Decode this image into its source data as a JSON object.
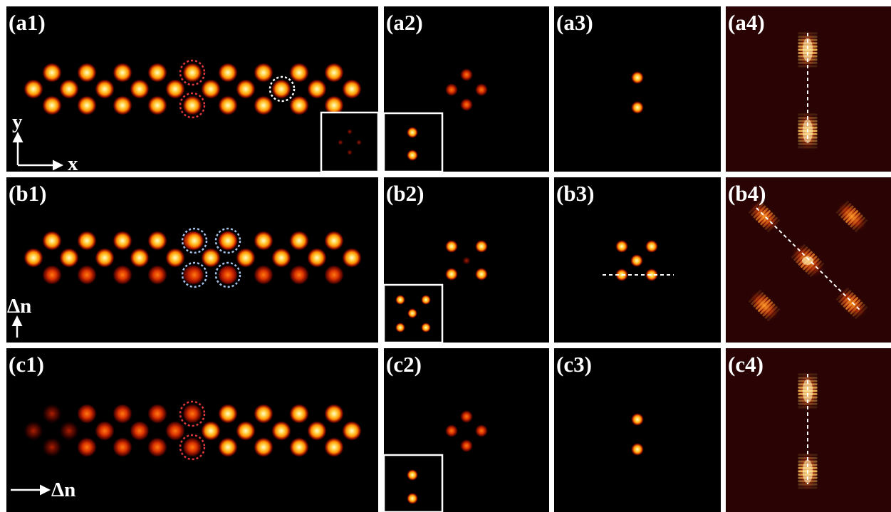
{
  "figure": {
    "panels": [
      {
        "id": "a1",
        "label": "(a1)"
      },
      {
        "id": "a2",
        "label": "(a2)"
      },
      {
        "id": "a3",
        "label": "(a3)"
      },
      {
        "id": "a4",
        "label": "(a4)"
      },
      {
        "id": "b1",
        "label": "(b1)"
      },
      {
        "id": "b2",
        "label": "(b2)"
      },
      {
        "id": "b3",
        "label": "(b3)"
      },
      {
        "id": "b4",
        "label": "(b4)"
      },
      {
        "id": "c1",
        "label": "(c1)"
      },
      {
        "id": "c2",
        "label": "(c2)"
      },
      {
        "id": "c3",
        "label": "(c3)"
      },
      {
        "id": "c4",
        "label": "(c4)"
      }
    ],
    "axis_labels": {
      "y": "y",
      "x": "x",
      "delta_n_b": "Δn",
      "delta_n_c": "Δn"
    },
    "colors": {
      "background": "#000000",
      "border": "#ffffff",
      "spot_core": "#fffbd0",
      "spot_mid": "#ffb000",
      "spot_edge": "#c81a00",
      "circle_red": "#e0363c",
      "circle_white": "#ffffff",
      "circle_blue": "#a8c4ee",
      "panel4_bg": "#2a0404"
    }
  }
}
